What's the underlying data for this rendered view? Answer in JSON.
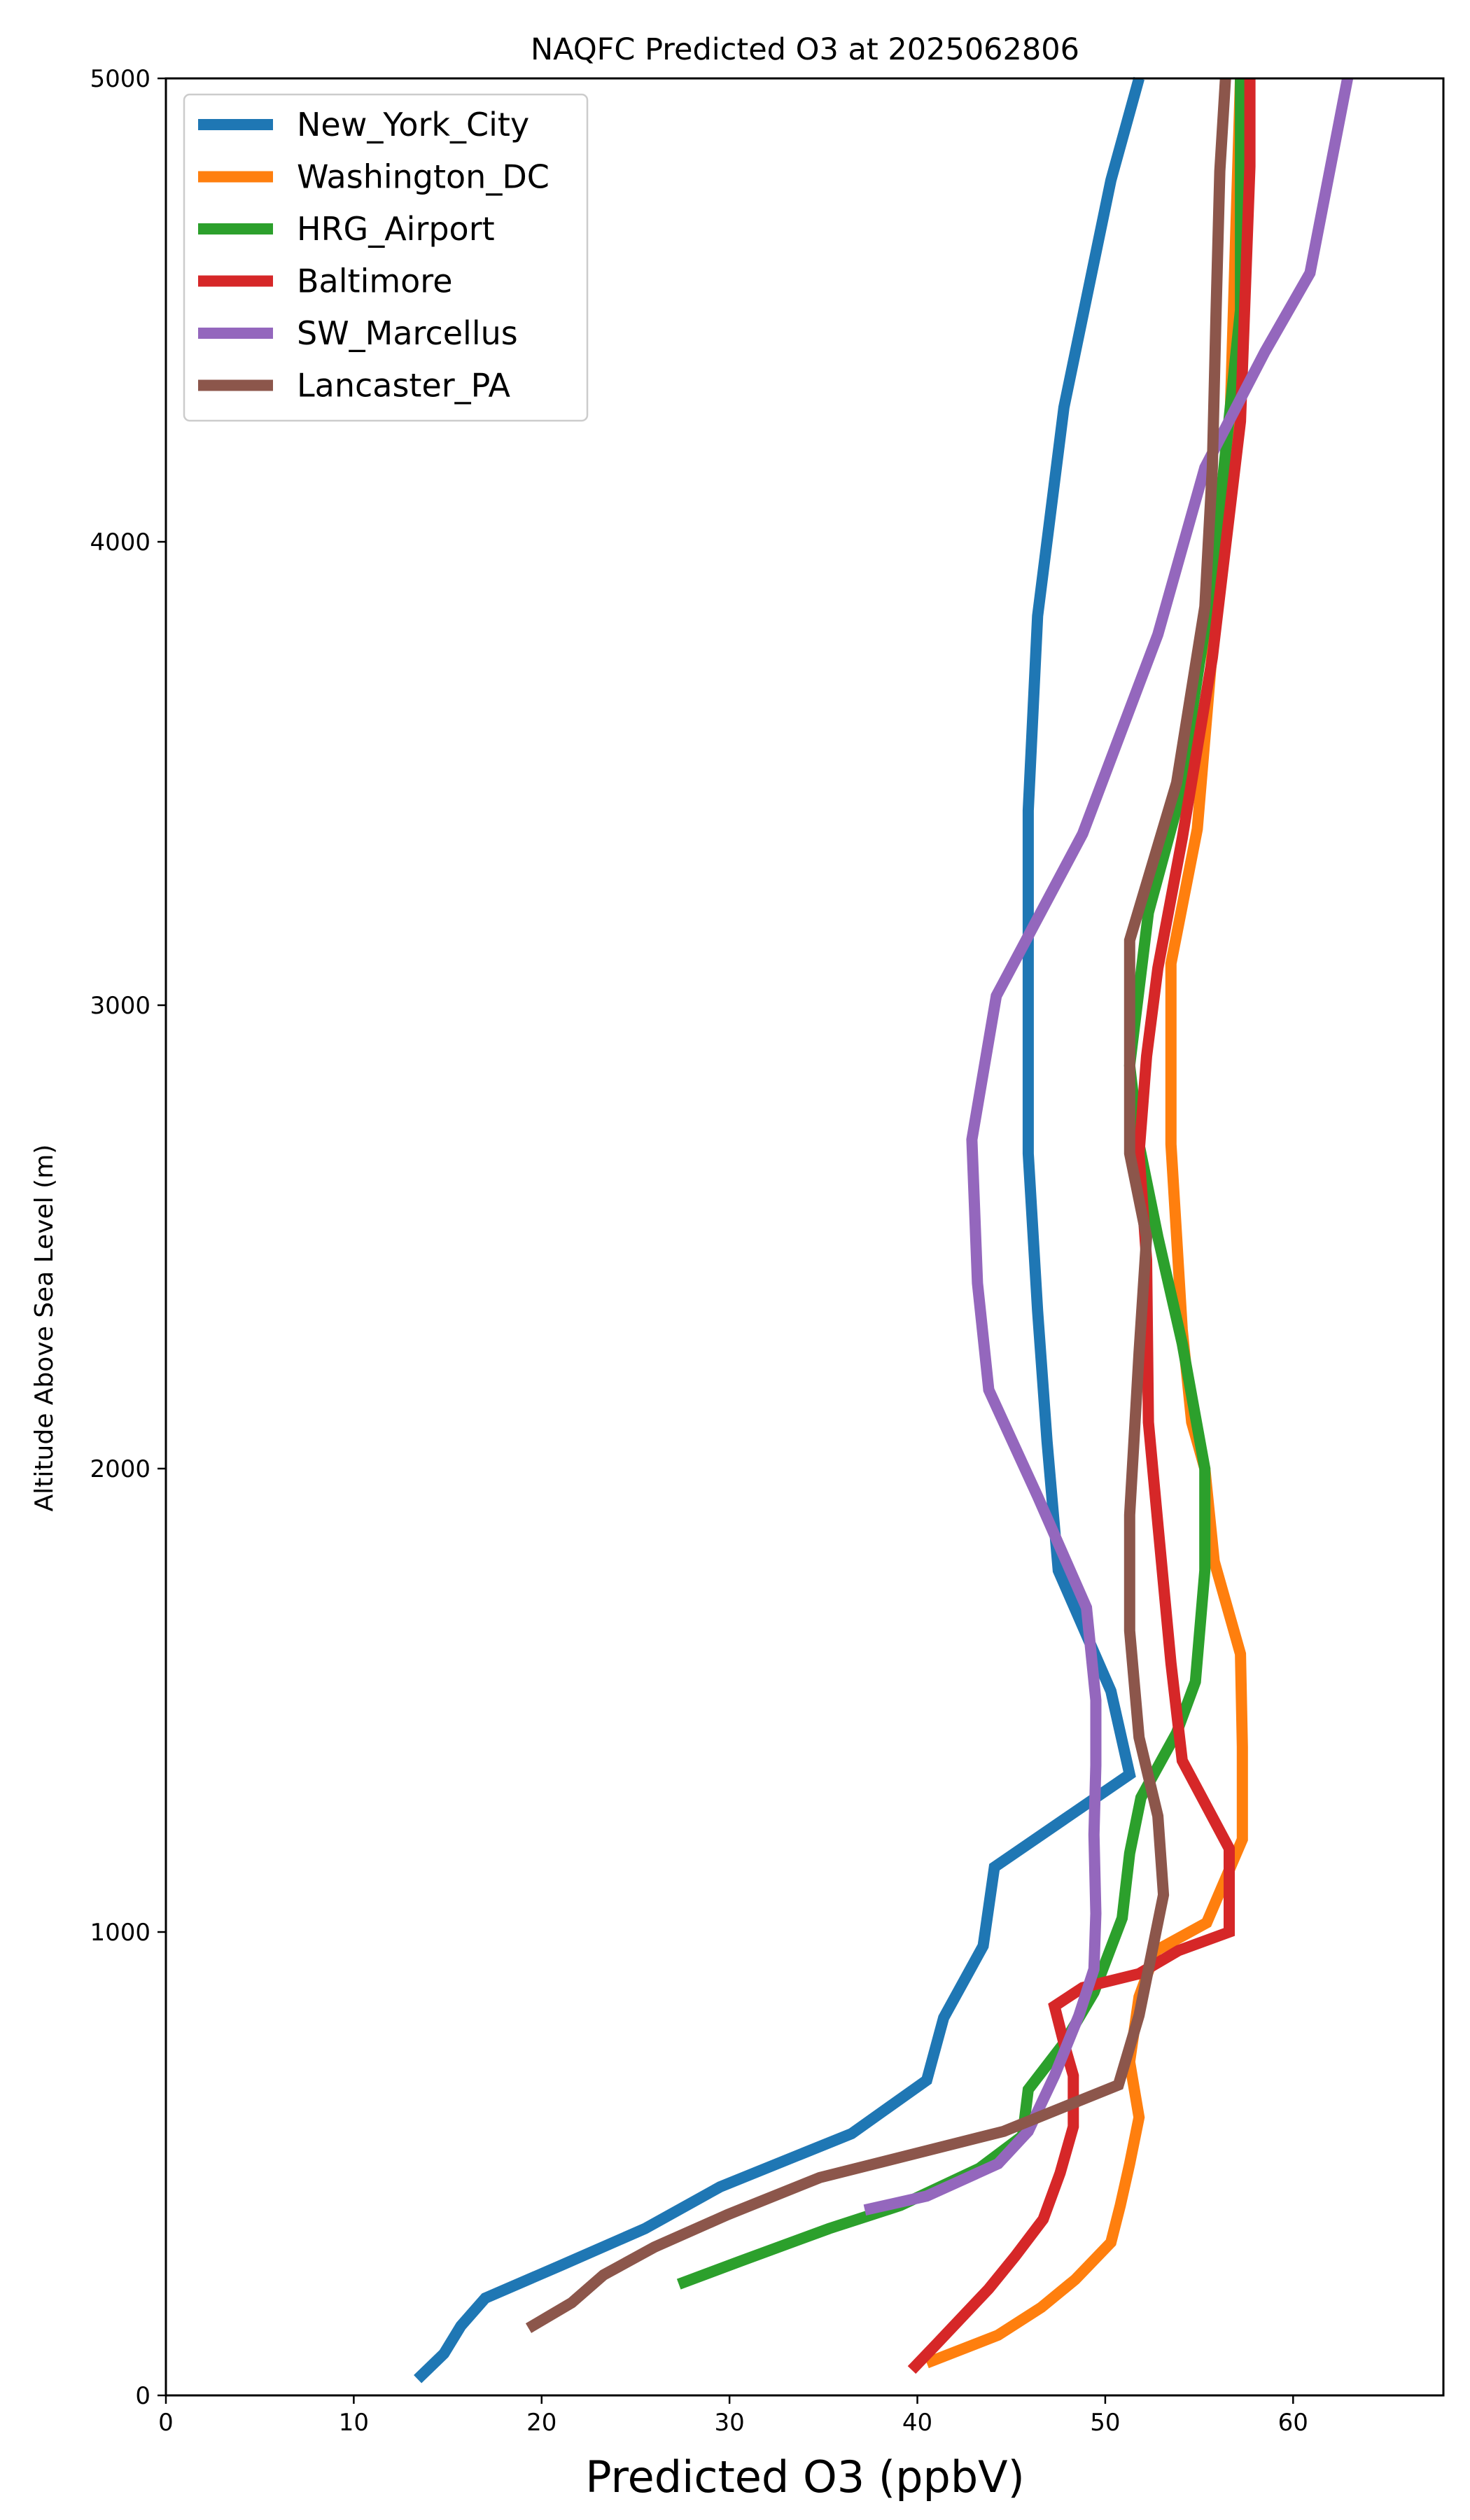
{
  "chart_data": {
    "type": "line",
    "title": "NAQFC Predicted O3 at 2025062806",
    "xlabel": "Predicted O3 (ppbV)",
    "ylabel": "Altitude Above Sea Level (m)",
    "xlim": [
      0,
      68
    ],
    "ylim": [
      0,
      5000
    ],
    "xticks": [
      0,
      10,
      20,
      30,
      40,
      50,
      60
    ],
    "yticks": [
      0,
      1000,
      2000,
      3000,
      4000,
      5000
    ],
    "grid": false,
    "legend_position": "upper-left",
    "series": [
      {
        "name": "New_York_City",
        "color": "#1f77b4",
        "points": [
          [
            13.4,
            35
          ],
          [
            14.8,
            90
          ],
          [
            15.7,
            150
          ],
          [
            17,
            210
          ],
          [
            21,
            280
          ],
          [
            25.5,
            360
          ],
          [
            29.5,
            450
          ],
          [
            36.5,
            565
          ],
          [
            40.5,
            680
          ],
          [
            41.4,
            815
          ],
          [
            43.5,
            970
          ],
          [
            44.1,
            1140
          ],
          [
            51.3,
            1340
          ],
          [
            50.3,
            1520
          ],
          [
            47.5,
            1780
          ],
          [
            46.9,
            2060
          ],
          [
            46.4,
            2340
          ],
          [
            45.9,
            2680
          ],
          [
            45.9,
            3420
          ],
          [
            46.4,
            3840
          ],
          [
            47.8,
            4290
          ],
          [
            50.3,
            4780
          ],
          [
            51.8,
            5000
          ]
        ]
      },
      {
        "name": "Washington_DC",
        "color": "#ff7f0e",
        "points": [
          [
            40.5,
            70
          ],
          [
            44.3,
            130
          ],
          [
            46.6,
            190
          ],
          [
            48.4,
            250
          ],
          [
            50.3,
            330
          ],
          [
            50.8,
            410
          ],
          [
            51.3,
            500
          ],
          [
            51.8,
            600
          ],
          [
            51.3,
            720
          ],
          [
            51.8,
            860
          ],
          [
            52.7,
            960
          ],
          [
            55.4,
            1020
          ],
          [
            57.3,
            1200
          ],
          [
            57.3,
            1400
          ],
          [
            57.2,
            1600
          ],
          [
            55.8,
            1800
          ],
          [
            55.3,
            2000
          ],
          [
            54.6,
            2100
          ],
          [
            54.1,
            2300
          ],
          [
            53.8,
            2500
          ],
          [
            53.5,
            2700
          ],
          [
            53.5,
            3090
          ],
          [
            54.9,
            3380
          ],
          [
            56.6,
            4200
          ],
          [
            57.2,
            5000
          ]
        ]
      },
      {
        "name": "HRG_Airport",
        "color": "#2ca02c",
        "points": [
          [
            27.3,
            240
          ],
          [
            30.6,
            290
          ],
          [
            35.3,
            360
          ],
          [
            39.1,
            410
          ],
          [
            43.3,
            490
          ],
          [
            45.6,
            560
          ],
          [
            45.9,
            660
          ],
          [
            47.8,
            760
          ],
          [
            49.4,
            870
          ],
          [
            50.9,
            1030
          ],
          [
            51.3,
            1170
          ],
          [
            51.9,
            1290
          ],
          [
            53.8,
            1430
          ],
          [
            54.8,
            1540
          ],
          [
            55.3,
            1780
          ],
          [
            55.3,
            2000
          ],
          [
            54.1,
            2270
          ],
          [
            52.8,
            2500
          ],
          [
            51.8,
            2700
          ],
          [
            51.3,
            2870
          ],
          [
            52.3,
            3200
          ],
          [
            53.9,
            3440
          ],
          [
            55.7,
            3920
          ],
          [
            57.2,
            4500
          ],
          [
            57.2,
            5000
          ]
        ]
      },
      {
        "name": "Baltimore",
        "color": "#d62728",
        "points": [
          [
            39.7,
            55
          ],
          [
            41,
            110
          ],
          [
            42.4,
            170
          ],
          [
            43.8,
            230
          ],
          [
            45.2,
            300
          ],
          [
            46.7,
            380
          ],
          [
            47.6,
            480
          ],
          [
            48.3,
            580
          ],
          [
            48.3,
            690
          ],
          [
            47.8,
            760
          ],
          [
            47.3,
            840
          ],
          [
            48.8,
            880
          ],
          [
            51.8,
            910
          ],
          [
            53.9,
            960
          ],
          [
            56.6,
            1000
          ],
          [
            56.6,
            1180
          ],
          [
            54.1,
            1370
          ],
          [
            53.5,
            1580
          ],
          [
            52.8,
            1880
          ],
          [
            52.3,
            2100
          ],
          [
            52.2,
            2450
          ],
          [
            51.8,
            2680
          ],
          [
            52.2,
            2890
          ],
          [
            52.8,
            3080
          ],
          [
            54.1,
            3360
          ],
          [
            55.7,
            3750
          ],
          [
            57.2,
            4260
          ],
          [
            57.7,
            4810
          ],
          [
            57.7,
            5000
          ]
        ]
      },
      {
        "name": "SW_Marcellus",
        "color": "#9467bd",
        "points": [
          [
            37.2,
            400
          ],
          [
            40.5,
            430
          ],
          [
            44.3,
            500
          ],
          [
            45.9,
            570
          ],
          [
            47.3,
            690
          ],
          [
            48.6,
            820
          ],
          [
            49.4,
            920
          ],
          [
            49.5,
            1040
          ],
          [
            49.4,
            1210
          ],
          [
            49.5,
            1360
          ],
          [
            49.5,
            1500
          ],
          [
            49,
            1700
          ],
          [
            46.4,
            1940
          ],
          [
            43.8,
            2170
          ],
          [
            43.2,
            2400
          ],
          [
            42.9,
            2710
          ],
          [
            44.2,
            3020
          ],
          [
            48.8,
            3370
          ],
          [
            52.8,
            3800
          ],
          [
            55.3,
            4160
          ],
          [
            58.5,
            4410
          ],
          [
            60.9,
            4580
          ],
          [
            62.9,
            5000
          ]
        ]
      },
      {
        "name": "Lancaster_PA",
        "color": "#8c564b",
        "points": [
          [
            19.3,
            145
          ],
          [
            21.6,
            200
          ],
          [
            23.3,
            260
          ],
          [
            26,
            320
          ],
          [
            29.9,
            390
          ],
          [
            34.8,
            470
          ],
          [
            44.6,
            570
          ],
          [
            50.7,
            670
          ],
          [
            51.8,
            820
          ],
          [
            53.1,
            1080
          ],
          [
            52.8,
            1250
          ],
          [
            51.8,
            1420
          ],
          [
            51.3,
            1650
          ],
          [
            51.3,
            1900
          ],
          [
            51.8,
            2250
          ],
          [
            52.2,
            2500
          ],
          [
            51.3,
            2680
          ],
          [
            51.3,
            2880
          ],
          [
            51.3,
            3140
          ],
          [
            53.8,
            3480
          ],
          [
            55.3,
            3860
          ],
          [
            55.7,
            4160
          ],
          [
            55.9,
            4500
          ],
          [
            56.1,
            4800
          ],
          [
            56.4,
            5000
          ]
        ]
      }
    ]
  }
}
